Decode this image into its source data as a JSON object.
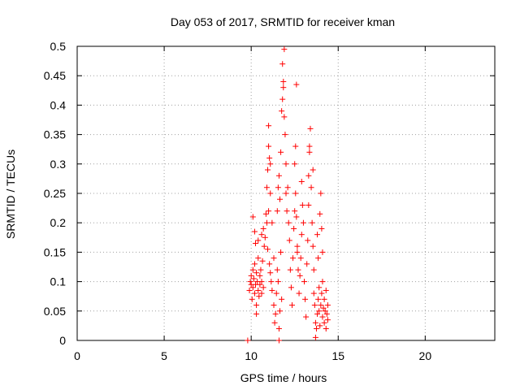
{
  "chart_data": {
    "type": "scatter",
    "title": "Day 053 of 2017, SRMTID for receiver kman",
    "xlabel": "GPS time / hours",
    "ylabel": "SRMTID / TECUs",
    "xlim": [
      0,
      24
    ],
    "ylim": [
      0,
      0.5
    ],
    "xticks": [
      "0",
      "5",
      "10",
      "15",
      "20"
    ],
    "xtick_values": [
      0,
      5,
      10,
      15,
      20
    ],
    "yticks": [
      "0",
      "0.05",
      "0.1",
      "0.15",
      "0.2",
      "0.25",
      "0.3",
      "0.35",
      "0.4",
      "0.45",
      "0.5"
    ],
    "ytick_values": [
      0,
      0.05,
      0.1,
      0.15,
      0.2,
      0.25,
      0.3,
      0.35,
      0.4,
      0.45,
      0.5
    ],
    "grid": true,
    "marker": "+",
    "marker_color": "#ff0000",
    "series": [
      {
        "name": "SRMTID",
        "points": [
          [
            9.8,
            0.0
          ],
          [
            11.6,
            0.0
          ],
          [
            9.9,
            0.085
          ],
          [
            9.95,
            0.1
          ],
          [
            10.0,
            0.095
          ],
          [
            10.0,
            0.11
          ],
          [
            10.05,
            0.07
          ],
          [
            10.1,
            0.12
          ],
          [
            10.1,
            0.09
          ],
          [
            10.15,
            0.105
          ],
          [
            10.2,
            0.08
          ],
          [
            10.2,
            0.13
          ],
          [
            10.25,
            0.095
          ],
          [
            10.3,
            0.06
          ],
          [
            10.3,
            0.115
          ],
          [
            10.35,
            0.1
          ],
          [
            10.4,
            0.085
          ],
          [
            10.4,
            0.14
          ],
          [
            10.45,
            0.075
          ],
          [
            10.5,
            0.11
          ],
          [
            10.5,
            0.095
          ],
          [
            10.55,
            0.12
          ],
          [
            10.6,
            0.08
          ],
          [
            10.6,
            0.1
          ],
          [
            10.65,
            0.135
          ],
          [
            10.7,
            0.09
          ],
          [
            10.1,
            0.21
          ],
          [
            10.2,
            0.185
          ],
          [
            10.25,
            0.165
          ],
          [
            10.4,
            0.17
          ],
          [
            10.3,
            0.045
          ],
          [
            10.6,
            0.18
          ],
          [
            10.7,
            0.19
          ],
          [
            10.75,
            0.16
          ],
          [
            10.8,
            0.175
          ],
          [
            10.85,
            0.215
          ],
          [
            10.9,
            0.2
          ],
          [
            10.95,
            0.155
          ],
          [
            11.0,
            0.22
          ],
          [
            11.05,
            0.13
          ],
          [
            11.1,
            0.115
          ],
          [
            11.1,
            0.25
          ],
          [
            11.15,
            0.1
          ],
          [
            11.2,
            0.085
          ],
          [
            10.9,
            0.26
          ],
          [
            10.95,
            0.29
          ],
          [
            11.0,
            0.33
          ],
          [
            11.05,
            0.31
          ],
          [
            11.0,
            0.365
          ],
          [
            11.1,
            0.3
          ],
          [
            11.2,
            0.2
          ],
          [
            11.3,
            0.14
          ],
          [
            11.3,
            0.06
          ],
          [
            11.35,
            0.03
          ],
          [
            11.4,
            0.045
          ],
          [
            11.45,
            0.08
          ],
          [
            11.5,
            0.12
          ],
          [
            11.55,
            0.1
          ],
          [
            11.6,
            0.02
          ],
          [
            11.65,
            0.05
          ],
          [
            11.7,
            0.15
          ],
          [
            11.75,
            0.07
          ],
          [
            11.5,
            0.22
          ],
          [
            11.55,
            0.26
          ],
          [
            11.6,
            0.28
          ],
          [
            11.65,
            0.24
          ],
          [
            11.7,
            0.32
          ],
          [
            11.75,
            0.39
          ],
          [
            11.8,
            0.41
          ],
          [
            11.85,
            0.44
          ],
          [
            11.8,
            0.47
          ],
          [
            11.9,
            0.495
          ],
          [
            11.85,
            0.43
          ],
          [
            11.9,
            0.38
          ],
          [
            11.95,
            0.35
          ],
          [
            12.0,
            0.3
          ],
          [
            12.0,
            0.25
          ],
          [
            12.05,
            0.22
          ],
          [
            12.1,
            0.26
          ],
          [
            12.15,
            0.2
          ],
          [
            12.2,
            0.17
          ],
          [
            12.25,
            0.12
          ],
          [
            12.3,
            0.09
          ],
          [
            12.35,
            0.06
          ],
          [
            12.4,
            0.14
          ],
          [
            12.45,
            0.19
          ],
          [
            12.5,
            0.22
          ],
          [
            12.55,
            0.25
          ],
          [
            12.5,
            0.3
          ],
          [
            12.55,
            0.33
          ],
          [
            12.6,
            0.21
          ],
          [
            12.65,
            0.16
          ],
          [
            12.7,
            0.12
          ],
          [
            12.75,
            0.08
          ],
          [
            12.8,
            0.11
          ],
          [
            12.85,
            0.14
          ],
          [
            12.9,
            0.18
          ],
          [
            12.95,
            0.23
          ],
          [
            12.6,
            0.435
          ],
          [
            12.65,
            0.15
          ],
          [
            12.9,
            0.27
          ],
          [
            13.0,
            0.2
          ],
          [
            13.05,
            0.1
          ],
          [
            13.1,
            0.07
          ],
          [
            13.15,
            0.04
          ],
          [
            13.2,
            0.13
          ],
          [
            13.25,
            0.17
          ],
          [
            13.3,
            0.23
          ],
          [
            13.3,
            0.28
          ],
          [
            13.35,
            0.33
          ],
          [
            13.4,
            0.36
          ],
          [
            13.35,
            0.32
          ],
          [
            13.45,
            0.26
          ],
          [
            13.5,
            0.2
          ],
          [
            13.55,
            0.16
          ],
          [
            13.55,
            0.29
          ],
          [
            13.6,
            0.12
          ],
          [
            13.6,
            0.08
          ],
          [
            13.65,
            0.06
          ],
          [
            13.7,
            0.03
          ],
          [
            13.7,
            0.005
          ],
          [
            13.75,
            0.02
          ],
          [
            13.8,
            0.045
          ],
          [
            13.85,
            0.07
          ],
          [
            13.9,
            0.09
          ],
          [
            13.9,
            0.05
          ],
          [
            13.95,
            0.025
          ],
          [
            14.0,
            0.06
          ],
          [
            14.05,
            0.08
          ],
          [
            14.1,
            0.04
          ],
          [
            14.1,
            0.1
          ],
          [
            14.15,
            0.055
          ],
          [
            14.2,
            0.07
          ],
          [
            14.2,
            0.03
          ],
          [
            14.25,
            0.05
          ],
          [
            14.3,
            0.085
          ],
          [
            14.3,
            0.02
          ],
          [
            14.35,
            0.045
          ],
          [
            14.4,
            0.06
          ],
          [
            14.4,
            0.035
          ],
          [
            14.0,
            0.25
          ],
          [
            14.05,
            0.19
          ],
          [
            14.1,
            0.15
          ],
          [
            13.95,
            0.215
          ],
          [
            13.8,
            0.18
          ],
          [
            13.85,
            0.14
          ]
        ]
      }
    ]
  }
}
